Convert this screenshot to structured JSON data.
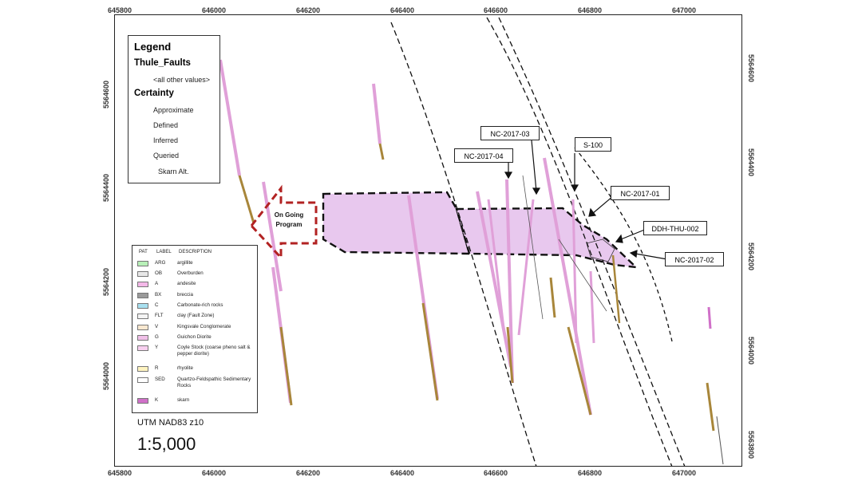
{
  "axes": {
    "x_ticks": [
      "645800",
      "646000",
      "646200",
      "646400",
      "646600",
      "646800",
      "647000"
    ],
    "y_ticks": [
      "5564600",
      "5564400",
      "5564200",
      "5564000",
      "5563800"
    ]
  },
  "legend": {
    "title": "Legend",
    "layer": "Thule_Faults",
    "all_other": "<all other values>",
    "certainty_title": "Certainty",
    "certainty_items": [
      "Approximate",
      "Defined",
      "Inferred",
      "Queried"
    ],
    "skarn_label": "Skarn Alt."
  },
  "lithology_legend": {
    "headers": [
      "PAT",
      "LABEL",
      "DESCRIPTION"
    ],
    "rows": [
      {
        "code": "ARG",
        "desc": "argillite",
        "color": "#b8f0b8"
      },
      {
        "code": "OB",
        "desc": "Overburden",
        "color": "#e8e8e8"
      },
      {
        "code": "A",
        "desc": "andesite",
        "color": "#f4b8e8"
      },
      {
        "code": "BX",
        "desc": "breccia",
        "color": "#9a9a9a"
      },
      {
        "code": "C",
        "desc": "Carbonate-rich rocks",
        "color": "#a8e0f0"
      },
      {
        "code": "FLT",
        "desc": "clay (Fault Zone)",
        "color": "#f4f4f4"
      },
      {
        "code": "V",
        "desc": "Kingsvale Conglomerate",
        "color": "#f8e8d0"
      },
      {
        "code": "G",
        "desc": "Guichon Diorite",
        "color": "#f0c0e8"
      },
      {
        "code": "Y",
        "desc": "Coyle Stock (coarse pheno salt & pepper diorite)",
        "color": "#f8d0f0"
      },
      {
        "code": "R",
        "desc": "rhyolite",
        "color": "#fff4c0"
      },
      {
        "code": "SED",
        "desc": "Quartzo-Feldspathic Sedimentary Rocks",
        "color": "#ffffff"
      },
      {
        "code": "K",
        "desc": "skarn",
        "color": "#d070c8"
      }
    ]
  },
  "callouts": {
    "nc_2017_03": "NC-2017-03",
    "nc_2017_04": "NC-2017-04",
    "s_100": "S-100",
    "nc_2017_01": "NC-2017-01",
    "ddh_thu_002": "DDH-THU-002",
    "nc_2017_02": "NC-2017-02"
  },
  "program": {
    "line1": "On Going",
    "line2": "Program"
  },
  "projection": "UTM NAD83 z10",
  "scale": "1:5,000",
  "colors": {
    "skarn_fill": "#e8c8ee",
    "fault_line": "#111111",
    "program_outline": "#b22222",
    "hole_core": "#a8863a",
    "legend_fault": "#2eaa8a"
  }
}
